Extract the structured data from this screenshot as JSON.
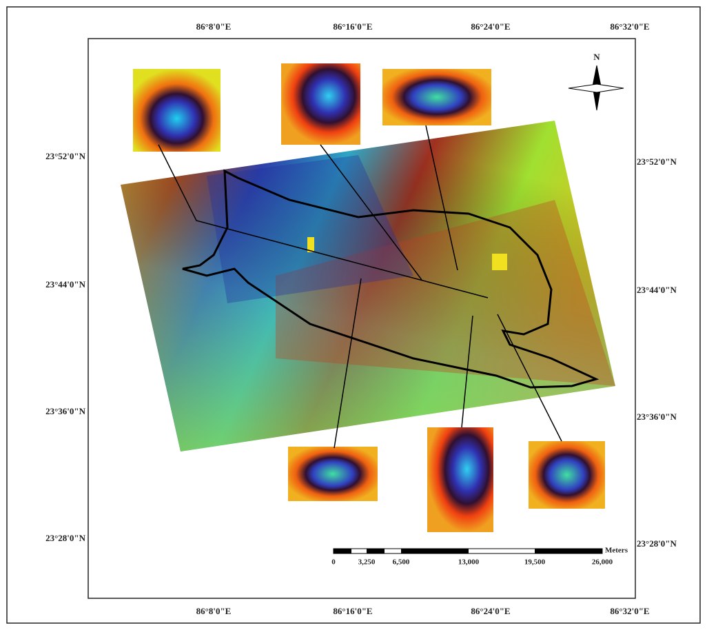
{
  "map": {
    "north": "N",
    "top_labels": [
      "86°8'0\"E",
      "86°16'0\"E",
      "86°24'0\"E",
      "86°32'0\"E"
    ],
    "bottom_labels": [
      "86°8'0\"E",
      "86°16'0\"E",
      "86°24'0\"E",
      "86°32'0\"E"
    ],
    "left_labels": [
      "23°52'0\"N",
      "23°44'0\"N",
      "23°36'0\"N",
      "23°28'0\"N"
    ],
    "right_labels": [
      "23°52'0\"N",
      "23°44'0\"N",
      "23°36'0\"N",
      "23°28'0\"N"
    ],
    "scale": {
      "unit": "Meters",
      "labels": [
        "0",
        "3,250",
        "6,500",
        "13,000",
        "19,500",
        "26,000"
      ]
    }
  }
}
